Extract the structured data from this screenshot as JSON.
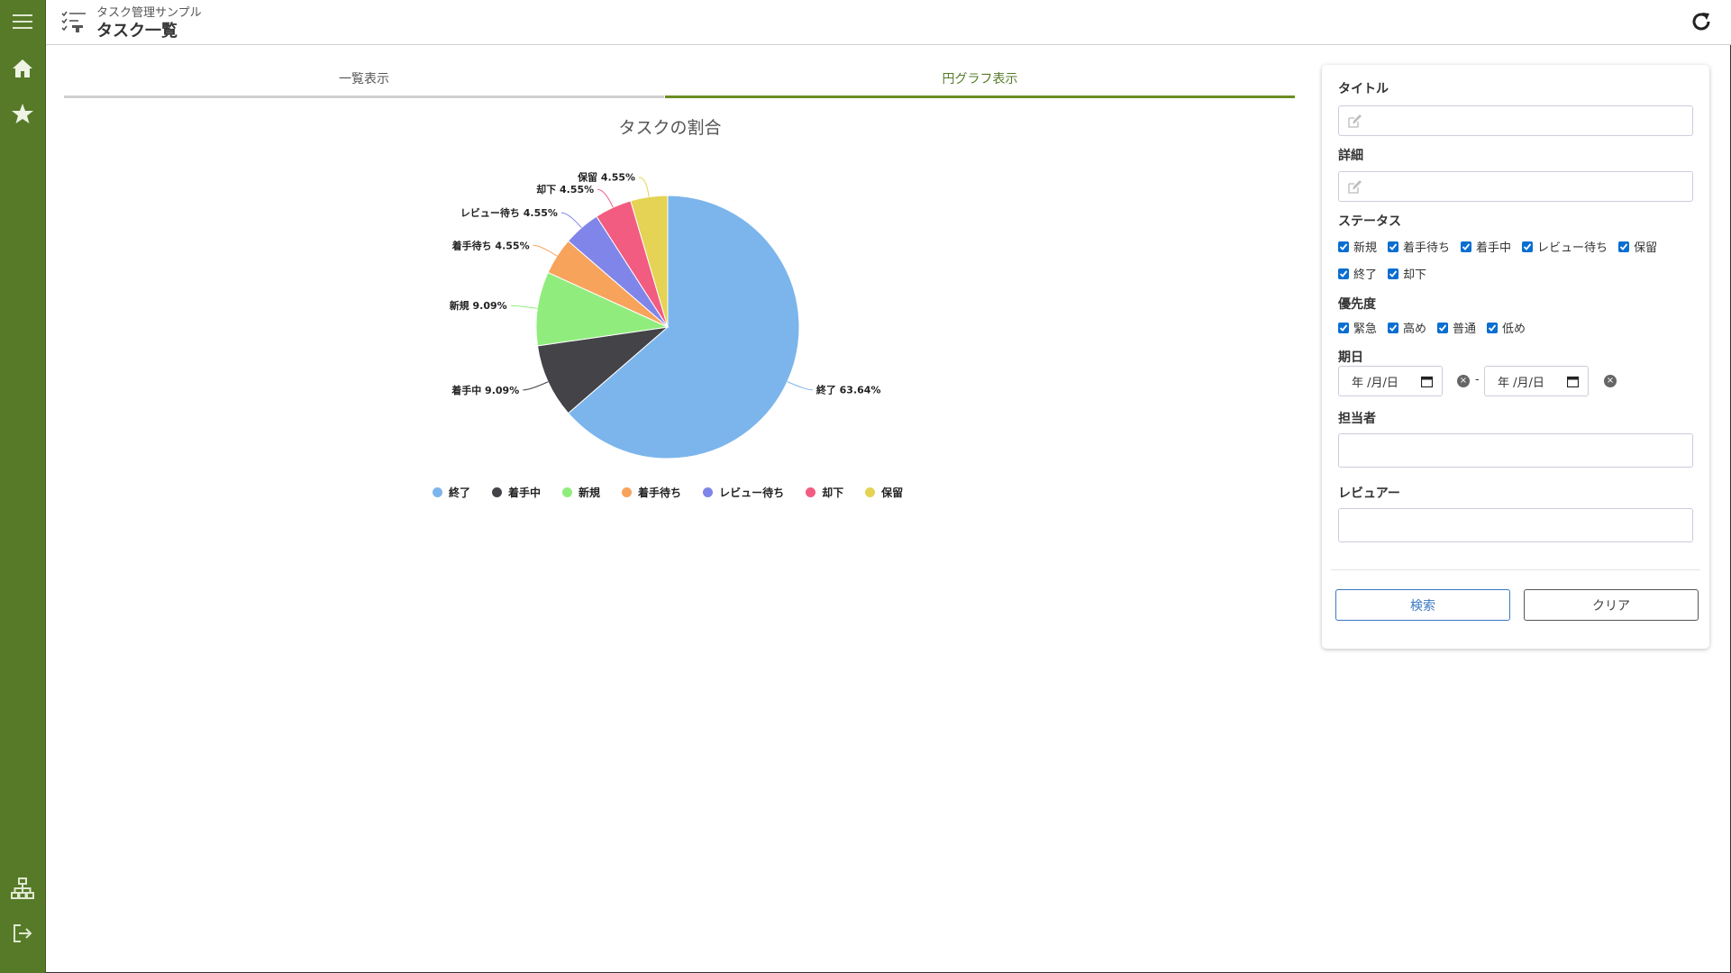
{
  "header": {
    "app_name": "タスク管理サンプル",
    "page_title": "タスク一覧"
  },
  "tabs": [
    {
      "label": "一覧表示",
      "active": false
    },
    {
      "label": "円グラフ表示",
      "active": true
    }
  ],
  "chart_data": {
    "type": "pie",
    "title": "タスクの割合",
    "slices": [
      {
        "label": "終了",
        "value": 63.64,
        "text": "終了 63.64%",
        "color": "#7cb5ec"
      },
      {
        "label": "着手中",
        "value": 9.09,
        "text": "着手中 9.09%",
        "color": "#434348"
      },
      {
        "label": "新規",
        "value": 9.09,
        "text": "新規 9.09%",
        "color": "#90ed7d"
      },
      {
        "label": "着手待ち",
        "value": 4.55,
        "text": "着手待ち 4.55%",
        "color": "#f7a35c"
      },
      {
        "label": "レビュー待ち",
        "value": 4.55,
        "text": "レビュー待ち 4.55%",
        "color": "#8085e9"
      },
      {
        "label": "却下",
        "value": 4.55,
        "text": "却下 4.55%",
        "color": "#f15c80"
      },
      {
        "label": "保留",
        "value": 4.55,
        "text": "保留 4.55%",
        "color": "#e4d354"
      }
    ],
    "legend_position": "bottom"
  },
  "search": {
    "title_label": "タイトル",
    "title_value": "",
    "detail_label": "詳細",
    "detail_value": "",
    "status_label": "ステータス",
    "status_options": [
      {
        "label": "新規",
        "checked": true
      },
      {
        "label": "着手待ち",
        "checked": true
      },
      {
        "label": "着手中",
        "checked": true
      },
      {
        "label": "レビュー待ち",
        "checked": true
      },
      {
        "label": "保留",
        "checked": true
      },
      {
        "label": "終了",
        "checked": true
      },
      {
        "label": "却下",
        "checked": true
      }
    ],
    "priority_label": "優先度",
    "priority_options": [
      {
        "label": "緊急",
        "checked": true
      },
      {
        "label": "高め",
        "checked": true
      },
      {
        "label": "普通",
        "checked": true
      },
      {
        "label": "低め",
        "checked": true
      }
    ],
    "date_label": "期日",
    "date_from": "年 /月/日",
    "date_to": "年 /月/日",
    "date_separator": "-",
    "assignee_label": "担当者",
    "assignee_value": "",
    "reviewer_label": "レビュアー",
    "reviewer_value": "",
    "search_button": "検索",
    "clear_button": "クリア"
  },
  "sidebar": {
    "items": [
      {
        "icon": "menu-icon"
      },
      {
        "icon": "home-icon"
      },
      {
        "icon": "star-icon"
      },
      {
        "icon": "sitemap-icon"
      },
      {
        "icon": "logout-icon"
      }
    ],
    "color": "#567a28"
  }
}
